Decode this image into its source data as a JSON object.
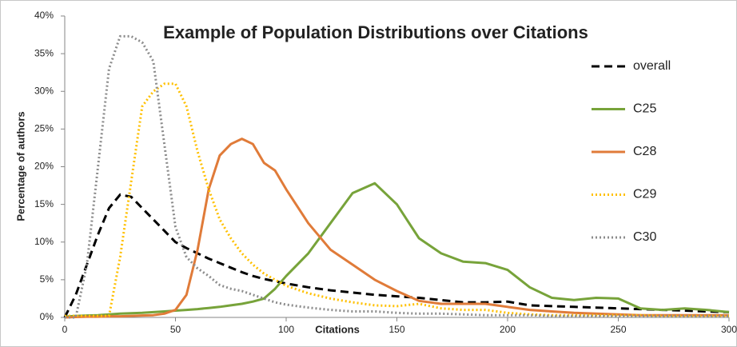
{
  "chart_data": {
    "type": "line",
    "title": "Example of Population Distributions over Citations",
    "x_label": "Citations",
    "y_label": "Percentage of authors",
    "x": [
      0,
      5,
      10,
      15,
      20,
      25,
      30,
      35,
      40,
      45,
      50,
      55,
      60,
      65,
      70,
      75,
      80,
      85,
      90,
      95,
      100,
      110,
      120,
      130,
      140,
      150,
      160,
      170,
      180,
      190,
      200,
      210,
      220,
      230,
      240,
      250,
      260,
      270,
      280,
      290,
      300
    ],
    "series": [
      {
        "name": "overall",
        "color": "#000000",
        "linestyle": "dashed",
        "values": [
          0,
          3,
          7,
          11,
          14.5,
          16.3,
          16,
          14.5,
          13,
          11.5,
          10,
          9.2,
          8.5,
          7.8,
          7.2,
          6.6,
          6,
          5.5,
          5.1,
          4.8,
          4.5,
          4,
          3.6,
          3.3,
          3,
          2.8,
          2.6,
          2.3,
          2,
          2,
          2.1,
          1.6,
          1.5,
          1.4,
          1.3,
          1.2,
          1.1,
          1,
          0.9,
          0.8,
          0.7
        ]
      },
      {
        "name": "C25",
        "color": "#77a33a",
        "linestyle": "solid",
        "values": [
          0.1,
          0.2,
          0.25,
          0.3,
          0.4,
          0.5,
          0.55,
          0.6,
          0.7,
          0.8,
          0.9,
          1,
          1.1,
          1.25,
          1.4,
          1.6,
          1.8,
          2.1,
          2.5,
          3.8,
          5.5,
          8.5,
          12.5,
          16.5,
          17.8,
          15,
          10.5,
          8.5,
          7.4,
          7.2,
          6.3,
          4,
          2.6,
          2.3,
          2.6,
          2.5,
          1.2,
          1,
          1.2,
          1,
          0.7
        ]
      },
      {
        "name": "C28",
        "color": "#e07b39",
        "linestyle": "solid",
        "values": [
          0,
          0.05,
          0.1,
          0.1,
          0.15,
          0.15,
          0.2,
          0.25,
          0.3,
          0.5,
          1,
          3,
          9,
          17,
          21.5,
          23,
          23.7,
          23,
          20.5,
          19.5,
          17,
          12.5,
          9,
          7,
          5,
          3.5,
          2.2,
          1.8,
          1.8,
          1.8,
          1.4,
          1,
          0.8,
          0.6,
          0.5,
          0.4,
          0.3,
          0.3,
          0.3,
          0.3,
          0.3
        ]
      },
      {
        "name": "C29",
        "color": "#ffc000",
        "linestyle": "dotted",
        "values": [
          0.2,
          0.2,
          0.2,
          0.2,
          0.2,
          8,
          18,
          28,
          30,
          31,
          31,
          28,
          22,
          17,
          13,
          10.5,
          8.5,
          7,
          5.8,
          5,
          4.2,
          3.2,
          2.5,
          2,
          1.6,
          1.5,
          1.8,
          1.2,
          1,
          1,
          0.6,
          0.4,
          0.3,
          0.3,
          0.3,
          0.3,
          0.3,
          0.2,
          0.2,
          0.2,
          0.2
        ]
      },
      {
        "name": "C30",
        "color": "#8c8c8c",
        "linestyle": "dotted",
        "values": [
          0,
          0,
          7,
          20,
          33,
          37.3,
          37.3,
          36.5,
          34,
          23,
          12,
          8,
          6.5,
          5.5,
          4.3,
          3.8,
          3.5,
          3,
          2.5,
          2,
          1.7,
          1.3,
          1,
          0.8,
          0.8,
          0.6,
          0.5,
          0.5,
          0.4,
          0.3,
          0.3,
          0.3,
          0.2,
          0.2,
          0.2,
          0.2,
          0.2,
          0.2,
          0.2,
          0.2,
          0.2
        ]
      }
    ],
    "xlim": [
      0,
      300
    ],
    "xticks": [
      0,
      50,
      100,
      150,
      200,
      250,
      300
    ],
    "ylim": [
      0,
      40
    ],
    "yticks": [
      {
        "value": 0,
        "label": "0%"
      },
      {
        "value": 5,
        "label": "5%"
      },
      {
        "value": 10,
        "label": "10%"
      },
      {
        "value": 15,
        "label": "15%"
      },
      {
        "value": 20,
        "label": "20%"
      },
      {
        "value": 25,
        "label": "25%"
      },
      {
        "value": 30,
        "label": "30%"
      },
      {
        "value": 35,
        "label": "35%"
      },
      {
        "value": 40,
        "label": "40%"
      }
    ],
    "grid": false,
    "legend": "right"
  }
}
